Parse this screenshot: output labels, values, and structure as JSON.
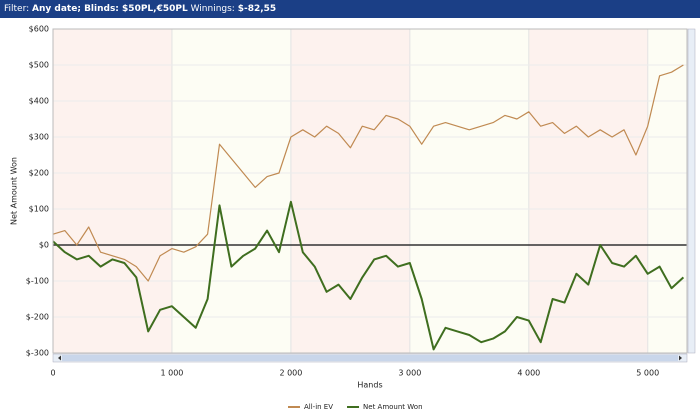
{
  "header": {
    "filter_label": "Filter:",
    "filter_value": "Any date; Blinds: $50PL,€50PL",
    "winnings_label": "Winnings:",
    "winnings_value": "$-82,55"
  },
  "chart_data": {
    "type": "line",
    "x_label": "Hands",
    "y_label": "Net Amount Won",
    "x": [
      0,
      100,
      200,
      300,
      400,
      500,
      600,
      700,
      800,
      900,
      1000,
      1100,
      1200,
      1300,
      1400,
      1500,
      1600,
      1700,
      1800,
      1900,
      2000,
      2100,
      2200,
      2300,
      2400,
      2500,
      2600,
      2700,
      2800,
      2900,
      3000,
      3100,
      3200,
      3300,
      3400,
      3500,
      3600,
      3700,
      3800,
      3900,
      4000,
      4100,
      4200,
      4300,
      4400,
      4500,
      4600,
      4700,
      4800,
      4900,
      5000,
      5100,
      5200,
      5300
    ],
    "series": [
      {
        "name": "All-in EV",
        "color": "#c08a52",
        "values": [
          30,
          40,
          0,
          50,
          -20,
          -30,
          -40,
          -60,
          -100,
          -30,
          -10,
          -20,
          -5,
          30,
          280,
          240,
          200,
          160,
          190,
          200,
          300,
          320,
          300,
          330,
          310,
          270,
          330,
          320,
          360,
          350,
          330,
          280,
          330,
          340,
          330,
          320,
          330,
          340,
          360,
          350,
          370,
          330,
          340,
          310,
          330,
          300,
          320,
          300,
          320,
          250,
          330,
          470,
          480,
          500
        ]
      },
      {
        "name": "Net Amount Won",
        "color": "#3f6e1f",
        "values": [
          10,
          -20,
          -40,
          -30,
          -60,
          -40,
          -50,
          -90,
          -240,
          -180,
          -170,
          -200,
          -230,
          -150,
          110,
          -60,
          -30,
          -10,
          40,
          -20,
          120,
          -20,
          -60,
          -130,
          -110,
          -150,
          -90,
          -40,
          -30,
          -60,
          -50,
          -150,
          -290,
          -230,
          -240,
          -250,
          -270,
          -260,
          -240,
          -200,
          -210,
          -270,
          -150,
          -160,
          -80,
          -110,
          0,
          -50,
          -60,
          -30,
          -80,
          -60,
          -120,
          -90
        ]
      }
    ],
    "xlim": [
      0,
      5330
    ],
    "xticks": [
      0,
      {
        "value": 1000,
        "label": "1 000"
      },
      {
        "value": 2000,
        "label": "2 000"
      },
      {
        "value": 3000,
        "label": "3 000"
      },
      {
        "value": 4000,
        "label": "4 000"
      },
      {
        "value": 5000,
        "label": "5 000"
      }
    ],
    "ylim": [
      -300,
      600
    ],
    "yticks": [
      {
        "value": -300,
        "label": "$-300"
      },
      {
        "value": -200,
        "label": "$-200"
      },
      {
        "value": -100,
        "label": "$-100"
      },
      {
        "value": 0,
        "label": "$0"
      },
      {
        "value": 100,
        "label": "$100"
      },
      {
        "value": 200,
        "label": "$200"
      },
      {
        "value": 300,
        "label": "$300"
      },
      {
        "value": 400,
        "label": "$400"
      },
      {
        "value": 500,
        "label": "$500"
      },
      {
        "value": 600,
        "label": "$600"
      }
    ],
    "grid": true
  }
}
